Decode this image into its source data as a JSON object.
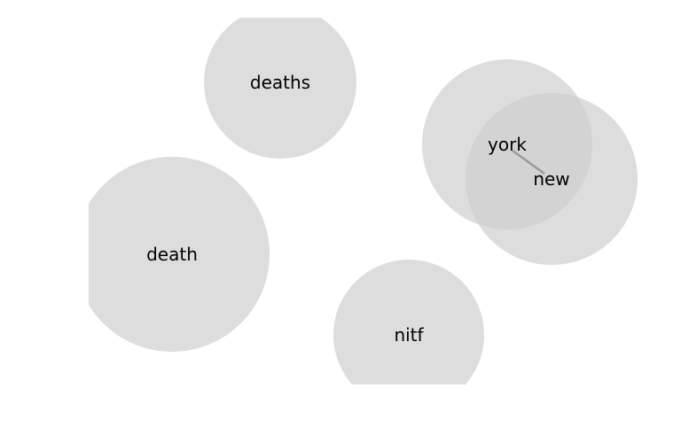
{
  "diagram": {
    "type": "term-bubble-map",
    "terms": [
      {
        "id": "deaths",
        "label": "deaths"
      },
      {
        "id": "york",
        "label": "york"
      },
      {
        "id": "new",
        "label": "new"
      },
      {
        "id": "death",
        "label": "death"
      },
      {
        "id": "nitf",
        "label": "nitf"
      }
    ],
    "links": [
      {
        "from": "york",
        "to": "new"
      }
    ],
    "colors": {
      "bubble": "#cfcfcf",
      "link": "#9a9a9a",
      "label": "#000000",
      "background": "#ffffff"
    }
  }
}
